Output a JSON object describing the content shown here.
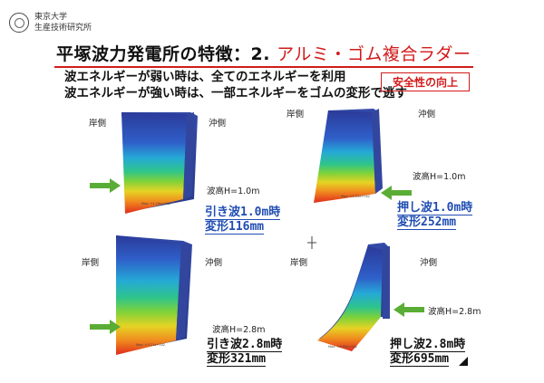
{
  "header": {
    "institute_line1": "東京大学",
    "institute_line2": "生産技術研究所"
  },
  "title": {
    "main": "平塚波力発電所の特徴：2. ",
    "accent": "アルミ・ゴム複合ラダー"
  },
  "intro": {
    "line1": "波エネルギーが弱い時は、全てのエネルギーを利用",
    "line2": "波エネルギーが強い時は、一部エネルギーをゴムの変形で逃す"
  },
  "badge": "安全性の向上",
  "panels": [
    {
      "shore": "岸側",
      "offshore": "沖側",
      "wave": "波高H=1.0m",
      "caption_line1": "引き波1.0m時",
      "caption_line2": "変形116mm"
    },
    {
      "shore": "岸側",
      "offshore": "沖側",
      "wave": "波高H=1.0m",
      "caption_line1": "押し波1.0m時",
      "caption_line2": "変形252mm"
    },
    {
      "shore": "岸側",
      "offshore": "沖側",
      "wave": "波高H=2.8m",
      "caption_line1": "引き波2.8m時",
      "caption_line2": "変形321mm"
    },
    {
      "shore": "岸側",
      "offshore": "沖側",
      "wave": "波高H=2.8m",
      "caption_line1": "押し波2.8m時",
      "caption_line2": "変形695mm"
    }
  ],
  "colors": {
    "accent_red": "#d21b1b",
    "caption_blue": "#1f4db3",
    "arrow_green": "#5aad34",
    "rudder_top": "#2a3e9e"
  }
}
